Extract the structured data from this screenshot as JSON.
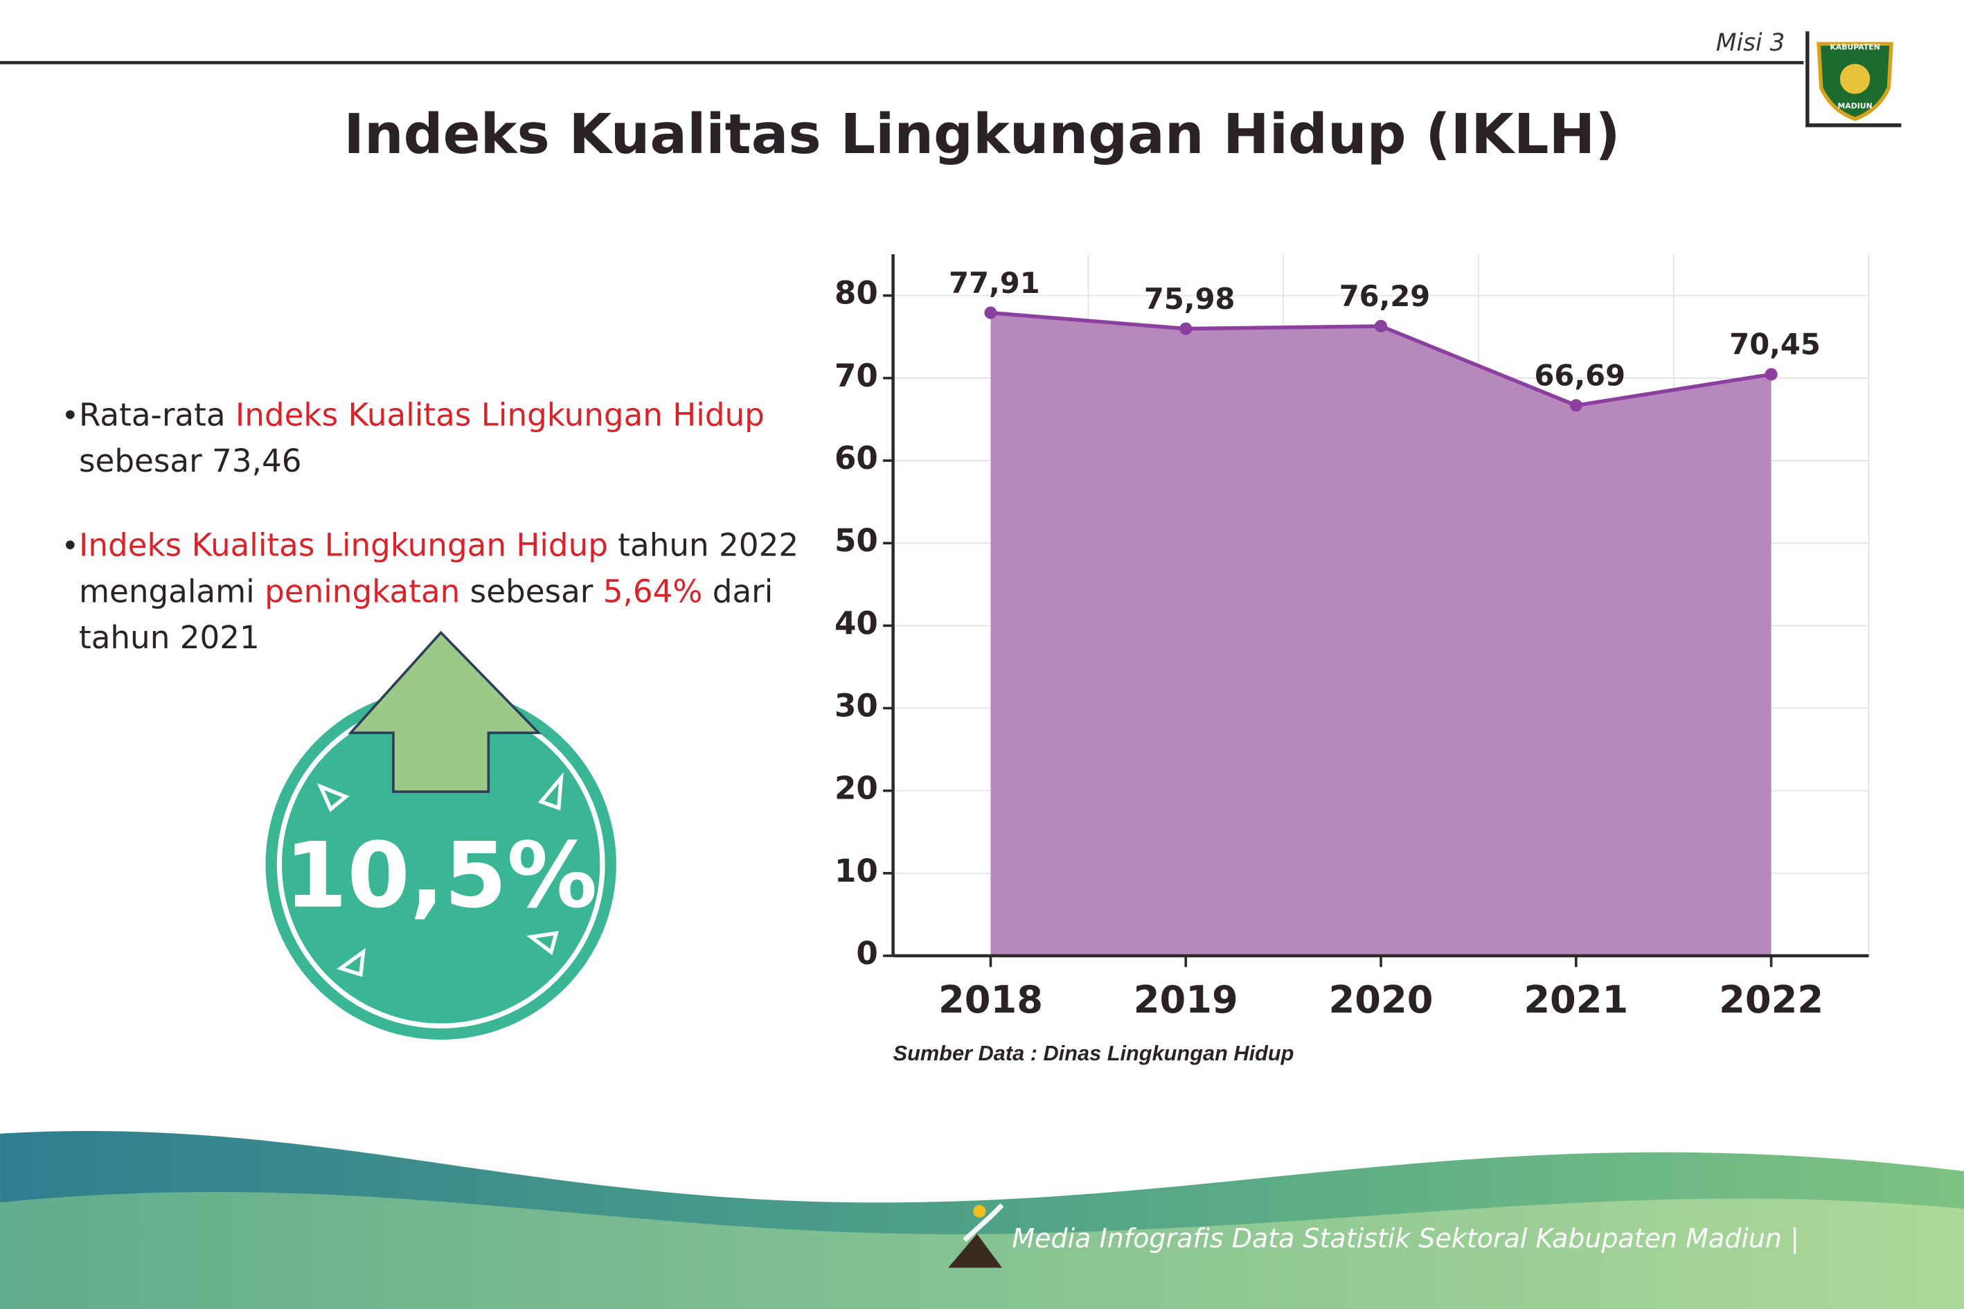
{
  "header": {
    "mission": "Misi 3",
    "logo_top": "KABUPATEN",
    "logo_bottom": "MADIUN"
  },
  "bullets": [
    {
      "lines": [
        [
          {
            "text": "Rata-rata ",
            "highlight": false
          },
          {
            "text": "Indeks Kualitas Lingkungan Hidup",
            "highlight": true
          }
        ],
        [
          {
            "text": "sebesar 73,46",
            "highlight": false
          }
        ]
      ]
    },
    {
      "lines": [
        [
          {
            "text": "Indeks Kualitas Lingkungan Hidup",
            "highlight": true
          },
          {
            "text": " tahun 2022",
            "highlight": false
          }
        ],
        [
          {
            "text": "mengalami ",
            "highlight": false
          },
          {
            "text": "peningkatan",
            "highlight": true
          },
          {
            "text": " sebesar ",
            "highlight": false
          },
          {
            "text": "5,64%",
            "highlight": true
          },
          {
            "text": " dari",
            "highlight": false
          }
        ],
        [
          {
            "text": "tahun 2021",
            "highlight": false
          }
        ]
      ]
    }
  ],
  "badge": {
    "text": "10,5%"
  },
  "footer": {
    "text": "Media Infografis Data Statistik Sektoral Kabupaten Madiun |"
  },
  "chart_data": {
    "type": "area",
    "title": "Indeks Kualitas Lingkungan Hidup (IKLH)",
    "categories": [
      "2018",
      "2019",
      "2020",
      "2021",
      "2022"
    ],
    "values": [
      77.91,
      75.98,
      76.29,
      66.69,
      70.45
    ],
    "value_labels": [
      "77,91",
      "75,98",
      "76,29",
      "66,69",
      "70,45"
    ],
    "color": "#b788bb",
    "line_color": "#8b3f9e",
    "ylim": [
      0,
      85
    ],
    "yticks": [
      0,
      10,
      20,
      30,
      40,
      50,
      60,
      70,
      80
    ],
    "grid": true,
    "source": "Sumber Data : Dinas Lingkungan Hidup"
  }
}
